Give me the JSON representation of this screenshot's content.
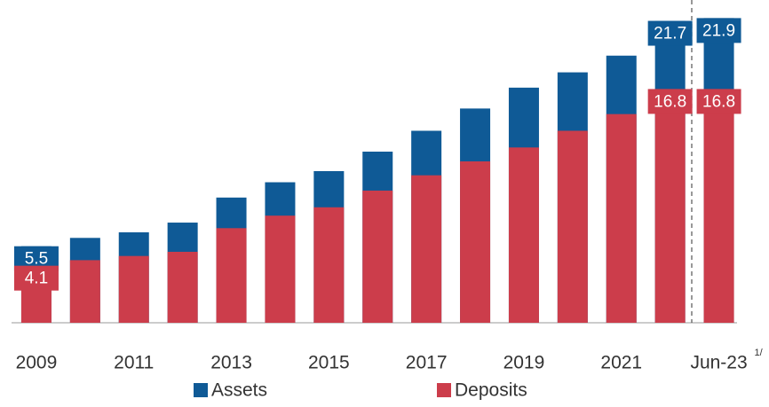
{
  "chart_data": {
    "type": "bar",
    "categories": [
      "2009",
      null,
      "2011",
      null,
      "2013",
      null,
      "2015",
      null,
      "2017",
      null,
      "2019",
      null,
      "2021",
      null,
      "Jun-23"
    ],
    "series": [
      {
        "name": "Assets",
        "color": "#0f5a96",
        "values": [
          5.5,
          6.1,
          6.5,
          7.2,
          9.0,
          10.1,
          10.9,
          12.3,
          13.8,
          15.4,
          16.9,
          18.0,
          19.2,
          21.7,
          21.9
        ],
        "value_labels": [
          "5.5",
          null,
          null,
          null,
          null,
          null,
          null,
          null,
          null,
          null,
          null,
          null,
          null,
          "21.7",
          "21.9"
        ]
      },
      {
        "name": "Deposits",
        "color": "#cc3d4b",
        "values": [
          4.1,
          4.5,
          4.8,
          5.1,
          6.8,
          7.7,
          8.3,
          9.5,
          10.6,
          11.6,
          12.6,
          13.8,
          15.0,
          16.8,
          16.8
        ],
        "value_labels": [
          "4.1",
          null,
          null,
          null,
          null,
          null,
          null,
          null,
          null,
          null,
          null,
          null,
          null,
          "16.8",
          "16.8"
        ]
      }
    ],
    "annotations": [
      "1/"
    ],
    "ylim": [
      0,
      23.2
    ],
    "legend": "bottom"
  }
}
